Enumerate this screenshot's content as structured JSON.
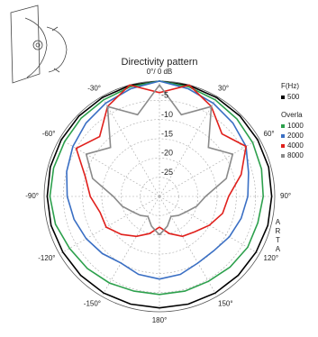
{
  "chart_data": {
    "type": "polar",
    "title": "Directivity pattern",
    "theta": [
      -180,
      -165,
      -150,
      -135,
      -120,
      -105,
      -90,
      -75,
      -60,
      -45,
      -30,
      -15,
      0,
      15,
      30,
      45,
      60,
      75,
      90,
      105,
      120,
      135,
      150,
      165,
      180
    ],
    "series": [
      {
        "name": "500",
        "color": "#000000",
        "values": [
          -1,
          -1,
          -1,
          -1,
          -1,
          -0.8,
          -0.8,
          -0.6,
          -0.5,
          -0.4,
          -0.3,
          -0.1,
          0,
          -0.1,
          -0.3,
          -0.4,
          -0.5,
          -0.6,
          -0.8,
          -0.8,
          -1,
          -1,
          -1,
          -1,
          -1
        ]
      },
      {
        "name": "1000",
        "color": "#2ca04c",
        "values": [
          -4.5,
          -4.5,
          -4,
          -3.5,
          -3,
          -2,
          -1.5,
          -1.5,
          -1.5,
          -1.2,
          -1,
          -0.5,
          0,
          -0.5,
          -1,
          -1.5,
          -2,
          -2.5,
          -3,
          -3.5,
          -3.5,
          -4,
          -4.5,
          -4.5,
          -4.5
        ]
      },
      {
        "name": "2000",
        "color": "#3a6fc4",
        "values": [
          -8.5,
          -9,
          -10,
          -9,
          -8,
          -7,
          -6,
          -5,
          -4,
          -3,
          -2,
          -1,
          0,
          -1,
          -2,
          -3,
          -4,
          -6,
          -7,
          -8,
          -9,
          -10,
          -10,
          -9,
          -8.5
        ]
      },
      {
        "name": "4000",
        "color": "#e0201c",
        "values": [
          -22,
          -20,
          -18,
          -16,
          -14,
          -14,
          -12,
          -10,
          -5,
          -8,
          -3,
          0,
          -3,
          0,
          -3,
          -7,
          -4,
          -8,
          -12,
          -13,
          -15,
          -17,
          -18,
          -20,
          -22
        ]
      },
      {
        "name": "8000",
        "color": "#8a8a8a",
        "values": [
          -20,
          -22,
          -24,
          -23,
          -22,
          -20,
          -18,
          -12,
          -8,
          -12,
          -3,
          -8,
          -1,
          -8,
          -3,
          -12,
          -8,
          -12,
          -18,
          -20,
          -22,
          -23,
          -24,
          -22,
          -20
        ]
      }
    ],
    "rlim": [
      -30,
      0
    ],
    "rticks": [
      -25,
      -20,
      -15,
      -10,
      -5
    ],
    "thetaticks": [
      {
        "value": 0,
        "label": "0°/ 0 dB"
      },
      {
        "value": 30,
        "label": "30°"
      },
      {
        "value": 60,
        "label": "60°"
      },
      {
        "value": 90,
        "label": "90°"
      },
      {
        "value": 120,
        "label": "120°"
      },
      {
        "value": 150,
        "label": "150°"
      },
      {
        "value": 180,
        "label": "180°"
      },
      {
        "value": -150,
        "label": "-150°"
      },
      {
        "value": -120,
        "label": "-120°"
      },
      {
        "value": -90,
        "label": "-90°"
      },
      {
        "value": -60,
        "label": "-60°"
      },
      {
        "value": -30,
        "label": "-30°"
      }
    ],
    "legend_title": "F(Hz)",
    "legend_subtitle": "Overla",
    "side_label": "ARTA",
    "grid": true
  }
}
